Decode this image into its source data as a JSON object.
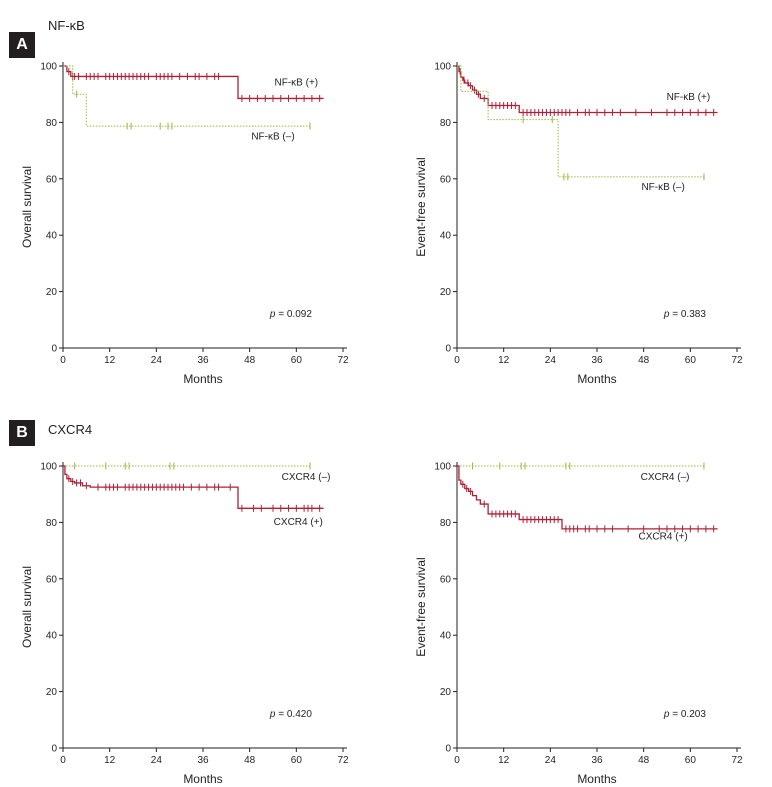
{
  "panels": [
    {
      "letter": "A",
      "title": "NF-κB"
    },
    {
      "letter": "B",
      "title": "CXCR4"
    }
  ],
  "colors": {
    "positive": "#b01f35",
    "negative": "#9aba3c",
    "axis": "#231f20"
  },
  "chart_data": [
    {
      "type": "line",
      "panel": "A",
      "xlabel": "Months",
      "ylabel": "Overall survival",
      "xlim": [
        0,
        72
      ],
      "ylim": [
        0,
        100
      ],
      "xticks": [
        0,
        12,
        24,
        36,
        48,
        60,
        72
      ],
      "yticks": [
        0,
        20,
        40,
        60,
        80,
        100
      ],
      "pvalue": "p = 0.092",
      "series": [
        {
          "name": "NF-κB (+)",
          "style": "solid",
          "color": "#b01f35",
          "steps": [
            [
              0,
              100
            ],
            [
              1,
              98
            ],
            [
              2,
              96.3
            ],
            [
              45,
              96.3
            ],
            [
              45,
              88.5
            ],
            [
              67,
              88.5
            ]
          ],
          "censored": [
            1.5,
            2.5,
            3,
            4,
            6,
            7,
            8,
            9,
            11,
            12,
            13,
            14,
            15,
            16,
            17,
            18,
            19,
            20,
            21,
            22,
            24,
            25,
            26,
            27,
            28,
            30,
            32,
            34,
            35,
            37,
            39,
            40,
            46,
            48,
            50,
            52,
            54,
            56,
            58,
            60,
            62,
            64,
            66
          ]
        },
        {
          "name": "NF-κB (–)",
          "style": "dotted",
          "color": "#9aba3c",
          "steps": [
            [
              0,
              100
            ],
            [
              2.5,
              100
            ],
            [
              2.5,
              90
            ],
            [
              6,
              90
            ],
            [
              6,
              78.7
            ],
            [
              64,
              78.7
            ]
          ],
          "censored": [
            3.5,
            16.5,
            17.5,
            25,
            27,
            28,
            63.5
          ]
        }
      ],
      "labels": [
        {
          "text": "NF-κB (+)",
          "x": 60,
          "y": 93
        },
        {
          "text": "NF-κB (–)",
          "x": 54,
          "y": 74
        }
      ]
    },
    {
      "type": "line",
      "panel": "A",
      "xlabel": "Months",
      "ylabel": "Event-free survival",
      "xlim": [
        0,
        72
      ],
      "ylim": [
        0,
        100
      ],
      "xticks": [
        0,
        12,
        24,
        36,
        48,
        60,
        72
      ],
      "yticks": [
        0,
        20,
        40,
        60,
        80,
        100
      ],
      "pvalue": "p = 0.383",
      "series": [
        {
          "name": "NF-κB (+)",
          "style": "solid",
          "color": "#b01f35",
          "steps": [
            [
              0,
              100
            ],
            [
              0.5,
              98
            ],
            [
              1,
              96
            ],
            [
              1.5,
              95
            ],
            [
              2,
              94
            ],
            [
              3,
              93
            ],
            [
              4,
              91.5
            ],
            [
              5,
              90
            ],
            [
              6,
              88.5
            ],
            [
              8,
              86
            ],
            [
              16,
              86
            ],
            [
              16,
              83.5
            ],
            [
              67,
              83.5
            ]
          ],
          "censored": [
            0.8,
            1.8,
            2.8,
            3.5,
            4.5,
            5.5,
            7,
            9,
            10,
            11,
            12,
            13,
            14,
            15,
            17,
            18,
            19,
            20,
            21,
            22,
            23,
            24,
            25,
            26,
            27,
            28,
            29,
            31,
            33,
            34,
            36,
            38,
            40,
            42,
            46,
            50,
            54,
            56,
            58,
            60,
            62,
            64,
            66
          ]
        },
        {
          "name": "NF-κB (–)",
          "style": "dotted",
          "color": "#9aba3c",
          "steps": [
            [
              0,
              100
            ],
            [
              1,
              91
            ],
            [
              8,
              91
            ],
            [
              8,
              81
            ],
            [
              26,
              81
            ],
            [
              26,
              60.7
            ],
            [
              64,
              60.7
            ]
          ],
          "censored": [
            17,
            24.5,
            27.5,
            28.5,
            63.5
          ]
        }
      ],
      "labels": [
        {
          "text": "NF-κB (+)",
          "x": 59.5,
          "y": 88
        },
        {
          "text": "NF-κB (–)",
          "x": 53,
          "y": 56
        }
      ]
    },
    {
      "type": "line",
      "panel": "B",
      "xlabel": "Months",
      "ylabel": "Overall survival",
      "xlim": [
        0,
        72
      ],
      "ylim": [
        0,
        100
      ],
      "xticks": [
        0,
        12,
        24,
        36,
        48,
        60,
        72
      ],
      "yticks": [
        0,
        20,
        40,
        60,
        80,
        100
      ],
      "pvalue": "p = 0.420",
      "series": [
        {
          "name": "CXCR4 (–)",
          "style": "dotted",
          "color": "#9aba3c",
          "steps": [
            [
              0,
              100
            ],
            [
              64,
              100
            ]
          ],
          "censored": [
            3,
            11,
            16,
            17,
            27.5,
            28.5,
            63.5
          ]
        },
        {
          "name": "CXCR4 (+)",
          "style": "solid",
          "color": "#b01f35",
          "steps": [
            [
              0,
              100
            ],
            [
              0.5,
              97
            ],
            [
              1,
              95.5
            ],
            [
              2,
              94.5
            ],
            [
              3,
              94
            ],
            [
              5,
              93
            ],
            [
              7,
              92.5
            ],
            [
              45,
              92.5
            ],
            [
              45,
              85
            ],
            [
              67,
              85
            ]
          ],
          "censored": [
            1.5,
            2.5,
            3.5,
            4.5,
            6,
            9,
            11,
            12,
            13,
            14,
            16,
            17,
            18,
            19,
            20,
            21,
            22,
            23,
            24,
            25,
            26,
            27,
            28,
            29,
            30,
            31,
            33,
            35,
            37,
            39,
            40,
            43,
            46,
            49,
            51,
            54,
            56,
            58,
            60,
            62,
            63,
            64,
            66
          ]
        }
      ],
      "labels": [
        {
          "text": "CXCR4 (–)",
          "x": 62.5,
          "y": 95
        },
        {
          "text": "CXCR4 (+)",
          "x": 60.5,
          "y": 79
        }
      ]
    },
    {
      "type": "line",
      "panel": "B",
      "xlabel": "Months",
      "ylabel": "Event-free survival",
      "xlim": [
        0,
        72
      ],
      "ylim": [
        0,
        100
      ],
      "xticks": [
        0,
        12,
        24,
        36,
        48,
        60,
        72
      ],
      "yticks": [
        0,
        20,
        40,
        60,
        80,
        100
      ],
      "pvalue": "p = 0.203",
      "series": [
        {
          "name": "CXCR4 (–)",
          "style": "dotted",
          "color": "#9aba3c",
          "steps": [
            [
              0,
              100
            ],
            [
              64,
              100
            ]
          ],
          "censored": [
            4,
            11,
            16.5,
            17.5,
            28,
            29,
            63.5
          ]
        },
        {
          "name": "CXCR4 (+)",
          "style": "solid",
          "color": "#b01f35",
          "steps": [
            [
              0,
              100
            ],
            [
              0.5,
              95
            ],
            [
              1,
              93.5
            ],
            [
              2,
              92
            ],
            [
              3,
              91
            ],
            [
              4,
              89.5
            ],
            [
              5,
              88
            ],
            [
              6,
              86.5
            ],
            [
              8,
              83
            ],
            [
              16,
              83
            ],
            [
              16,
              81
            ],
            [
              27,
              81
            ],
            [
              27,
              77.7
            ],
            [
              67,
              77.7
            ]
          ],
          "censored": [
            1.5,
            2.5,
            3.5,
            7,
            9,
            10,
            11,
            12,
            13,
            14,
            15,
            17,
            18,
            19,
            20,
            21,
            22,
            23,
            24,
            25,
            26,
            28,
            29,
            30,
            31,
            33,
            34,
            36,
            38,
            40,
            44,
            48,
            52,
            54,
            56,
            58,
            60,
            62,
            64,
            66
          ]
        }
      ],
      "labels": [
        {
          "text": "CXCR4 (–)",
          "x": 53.5,
          "y": 95
        },
        {
          "text": "CXCR4 (+)",
          "x": 53,
          "y": 74
        }
      ]
    }
  ]
}
